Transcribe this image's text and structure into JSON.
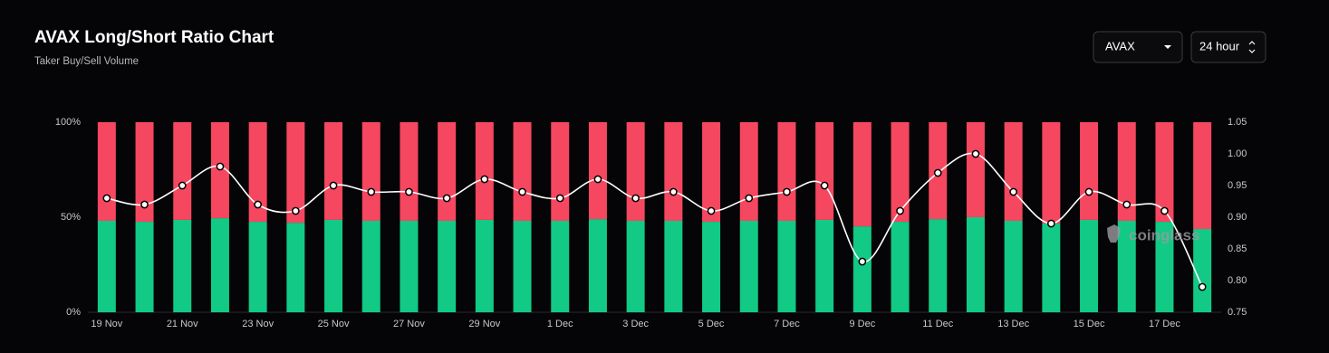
{
  "chart_data": {
    "type": "stacked-bar-line",
    "title": "AVAX Long/Short Ratio Chart",
    "subtitle": "Taker Buy/Sell Volume",
    "categories": [
      "19 Nov",
      null,
      "21 Nov",
      null,
      "23 Nov",
      null,
      "25 Nov",
      null,
      "27 Nov",
      null,
      "29 Nov",
      null,
      "1 Dec",
      null,
      "3 Dec",
      null,
      "5 Dec",
      null,
      "7 Dec",
      null,
      "9 Dec",
      null,
      "11 Dec",
      null,
      "13 Dec",
      null,
      "15 Dec",
      null,
      "17 Dec",
      null
    ],
    "series": [
      {
        "color": "#12c985",
        "values": [
          48.1,
          47.6,
          48.6,
          49.5,
          47.6,
          47.1,
          48.6,
          48.1,
          48.1,
          48.1,
          48.6,
          48.1,
          48.1,
          49.0,
          48.1,
          48.1,
          47.6,
          48.1,
          48.1,
          48.6,
          45.2,
          47.6,
          49.0,
          50.0,
          48.1,
          46.7,
          48.6,
          48.1,
          47.6,
          43.8
        ]
      },
      {
        "color": "#f5475f",
        "values": [
          51.9,
          52.4,
          51.4,
          50.5,
          52.4,
          52.9,
          51.4,
          51.9,
          51.9,
          51.9,
          51.4,
          51.9,
          51.9,
          51.0,
          51.9,
          51.9,
          52.4,
          51.9,
          51.9,
          51.4,
          54.8,
          52.4,
          51.0,
          50.0,
          51.9,
          53.3,
          51.4,
          51.9,
          52.4,
          56.2
        ]
      },
      {
        "type": "line",
        "axis": "y2",
        "color": "#ffffff",
        "values": [
          0.93,
          0.92,
          0.95,
          0.98,
          0.92,
          0.91,
          0.95,
          0.94,
          0.94,
          0.93,
          0.96,
          0.94,
          0.93,
          0.96,
          0.93,
          0.94,
          0.91,
          0.93,
          0.94,
          0.95,
          0.83,
          0.91,
          0.97,
          1.0,
          0.94,
          0.89,
          0.94,
          0.92,
          0.91,
          0.79
        ]
      }
    ],
    "ylim": [
      0,
      100
    ],
    "yticks": [
      {
        "value": 0,
        "label": "0%"
      },
      {
        "value": 50,
        "label": "50%"
      },
      {
        "value": 100,
        "label": "100%"
      }
    ],
    "y2lim": [
      0.75,
      1.05
    ],
    "y2ticks": [
      0.75,
      {
        "value": 0.8,
        "label": "0.80"
      },
      0.85,
      {
        "value": 0.9,
        "label": "0.90"
      },
      0.95,
      {
        "value": 1.0,
        "label": "1.00"
      },
      1.05
    ],
    "grid": false
  },
  "controls": {
    "symbol": "AVAX",
    "interval": "24 hour"
  },
  "watermark": "coinglass"
}
